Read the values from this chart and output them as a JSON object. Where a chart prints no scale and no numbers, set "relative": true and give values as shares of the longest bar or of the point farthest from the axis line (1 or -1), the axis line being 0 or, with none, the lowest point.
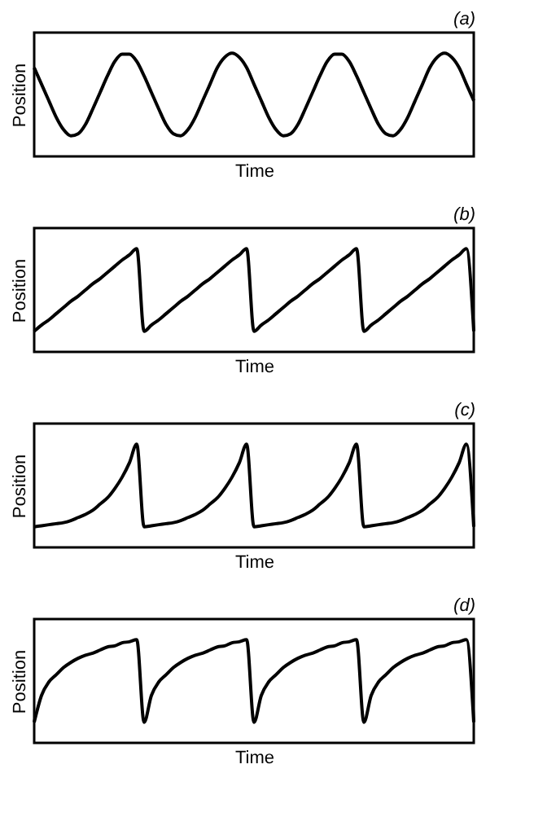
{
  "chart_data": [
    {
      "type": "line",
      "title": "(a)",
      "xlabel": "Time",
      "ylabel": "Position",
      "relative": true,
      "tick_labels": false,
      "grid": false,
      "color": "#000000",
      "categories": [
        null,
        null,
        null,
        null,
        null,
        null,
        null,
        null,
        null,
        null,
        null,
        null,
        null,
        null,
        null,
        null,
        null,
        null,
        null,
        null,
        null,
        null,
        null,
        null,
        null,
        null,
        null,
        null,
        null,
        null,
        null,
        null,
        null,
        null,
        null,
        null,
        null,
        null,
        null,
        null,
        null,
        null,
        null,
        null,
        null,
        null,
        null,
        null,
        null,
        null,
        null,
        null,
        null,
        null,
        null,
        null,
        null,
        null,
        null,
        null,
        null
      ],
      "values": [
        0.86,
        0.7,
        0.54,
        0.38,
        0.26,
        0.2,
        0.22,
        0.31,
        0.46,
        0.62,
        0.78,
        0.92,
        0.99,
        0.99,
        0.92,
        0.78,
        0.62,
        0.46,
        0.31,
        0.22,
        0.2,
        0.26,
        0.38,
        0.54,
        0.7,
        0.86,
        0.96,
        1,
        0.96,
        0.86,
        0.7,
        0.54,
        0.38,
        0.26,
        0.2,
        0.22,
        0.31,
        0.46,
        0.62,
        0.78,
        0.92,
        0.99,
        0.99,
        0.92,
        0.78,
        0.62,
        0.46,
        0.31,
        0.22,
        0.2,
        0.26,
        0.38,
        0.54,
        0.7,
        0.86,
        0.96,
        1,
        0.96,
        0.86,
        0.7,
        0.54
      ]
    },
    {
      "type": "line",
      "title": "(b)",
      "xlabel": "Time",
      "ylabel": "Position",
      "relative": true,
      "tick_labels": false,
      "grid": false,
      "color": "#000000",
      "categories": [
        null,
        null,
        null,
        null,
        null,
        null,
        null,
        null,
        null,
        null,
        null,
        null,
        null,
        null,
        null,
        null,
        null,
        null,
        null,
        null,
        null,
        null,
        null,
        null,
        null,
        null,
        null,
        null,
        null,
        null,
        null,
        null,
        null,
        null,
        null,
        null,
        null,
        null,
        null,
        null,
        null,
        null,
        null,
        null,
        null,
        null,
        null,
        null,
        null,
        null,
        null,
        null,
        null,
        null,
        null,
        null,
        null,
        null,
        null,
        null,
        null
      ],
      "values": [
        0.2,
        0.26,
        0.31,
        0.37,
        0.43,
        0.49,
        0.54,
        0.6,
        0.66,
        0.71,
        0.77,
        0.83,
        0.89,
        0.94,
        1,
        0.2,
        0.26,
        0.31,
        0.37,
        0.43,
        0.49,
        0.54,
        0.6,
        0.66,
        0.71,
        0.77,
        0.83,
        0.89,
        0.94,
        1,
        0.2,
        0.26,
        0.31,
        0.37,
        0.43,
        0.49,
        0.54,
        0.6,
        0.66,
        0.71,
        0.77,
        0.83,
        0.89,
        0.94,
        1,
        0.2,
        0.26,
        0.31,
        0.37,
        0.43,
        0.49,
        0.54,
        0.6,
        0.66,
        0.71,
        0.77,
        0.83,
        0.89,
        0.94,
        1,
        0.2
      ]
    },
    {
      "type": "line",
      "title": "(c)",
      "xlabel": "Time",
      "ylabel": "Position",
      "relative": true,
      "tick_labels": false,
      "grid": false,
      "color": "#000000",
      "categories": [
        null,
        null,
        null,
        null,
        null,
        null,
        null,
        null,
        null,
        null,
        null,
        null,
        null,
        null,
        null,
        null,
        null,
        null,
        null,
        null,
        null,
        null,
        null,
        null,
        null,
        null,
        null,
        null,
        null,
        null,
        null,
        null,
        null,
        null,
        null,
        null,
        null,
        null,
        null,
        null,
        null,
        null,
        null,
        null,
        null,
        null,
        null,
        null,
        null,
        null,
        null,
        null,
        null,
        null,
        null,
        null,
        null,
        null,
        null,
        null,
        null
      ],
      "values": [
        0.2,
        0.21,
        0.22,
        0.23,
        0.24,
        0.26,
        0.29,
        0.32,
        0.36,
        0.42,
        0.48,
        0.57,
        0.68,
        0.82,
        1,
        0.2,
        0.21,
        0.22,
        0.23,
        0.24,
        0.26,
        0.29,
        0.32,
        0.36,
        0.42,
        0.48,
        0.57,
        0.68,
        0.82,
        1,
        0.2,
        0.21,
        0.22,
        0.23,
        0.24,
        0.26,
        0.29,
        0.32,
        0.36,
        0.42,
        0.48,
        0.57,
        0.68,
        0.82,
        1,
        0.2,
        0.21,
        0.22,
        0.23,
        0.24,
        0.26,
        0.29,
        0.32,
        0.36,
        0.42,
        0.48,
        0.57,
        0.68,
        0.82,
        1,
        0.2
      ]
    },
    {
      "type": "line",
      "title": "(d)",
      "xlabel": "Time",
      "ylabel": "Position",
      "relative": true,
      "tick_labels": false,
      "grid": false,
      "color": "#000000",
      "categories": [
        null,
        null,
        null,
        null,
        null,
        null,
        null,
        null,
        null,
        null,
        null,
        null,
        null,
        null,
        null,
        null,
        null,
        null,
        null,
        null,
        null,
        null,
        null,
        null,
        null,
        null,
        null,
        null,
        null,
        null,
        null,
        null,
        null,
        null,
        null,
        null,
        null,
        null,
        null,
        null,
        null,
        null,
        null,
        null,
        null,
        null,
        null,
        null,
        null,
        null,
        null,
        null,
        null,
        null,
        null,
        null,
        null,
        null,
        null,
        null,
        null
      ],
      "values": [
        0.2,
        0.46,
        0.59,
        0.66,
        0.73,
        0.78,
        0.82,
        0.85,
        0.87,
        0.9,
        0.93,
        0.94,
        0.97,
        0.98,
        1,
        0.2,
        0.46,
        0.59,
        0.66,
        0.73,
        0.78,
        0.82,
        0.85,
        0.87,
        0.9,
        0.93,
        0.94,
        0.97,
        0.98,
        1,
        0.2,
        0.46,
        0.59,
        0.66,
        0.73,
        0.78,
        0.82,
        0.85,
        0.87,
        0.9,
        0.93,
        0.94,
        0.97,
        0.98,
        1,
        0.2,
        0.46,
        0.59,
        0.66,
        0.73,
        0.78,
        0.82,
        0.85,
        0.87,
        0.9,
        0.93,
        0.94,
        0.97,
        0.98,
        1,
        0.2
      ]
    }
  ]
}
